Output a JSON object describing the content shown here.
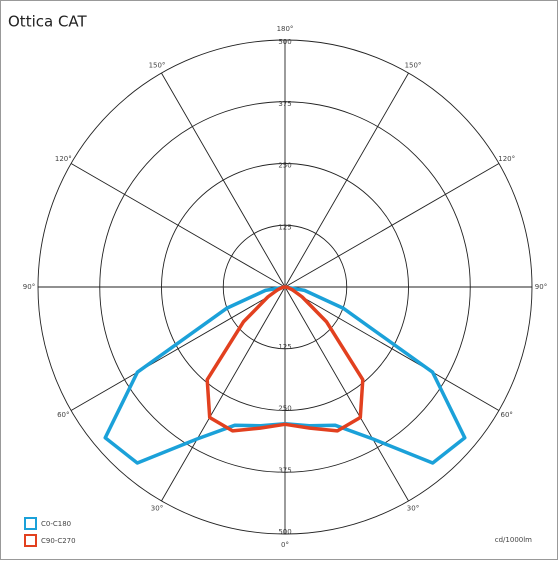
{
  "chart_data": {
    "type": "polar",
    "title": "Ottica CAT",
    "unit_label": "cd/1000lm",
    "x": [
      -90,
      -80,
      -70,
      -60,
      -50,
      -40,
      -30,
      -20,
      -10,
      0,
      10,
      20,
      30,
      40,
      50,
      60,
      70,
      80,
      90
    ],
    "series": [
      {
        "name": "C0-C180",
        "color": "#1ba1d9",
        "values": [
          0,
          40,
          125,
          345,
          475,
          465,
          355,
          298,
          285,
          277,
          285,
          298,
          355,
          465,
          475,
          345,
          125,
          40,
          0
        ]
      },
      {
        "name": "C90-C270",
        "color": "#e2401f",
        "values": [
          0,
          5,
          15,
          40,
          110,
          245,
          305,
          310,
          290,
          278,
          290,
          310,
          305,
          245,
          110,
          40,
          15,
          5,
          0
        ]
      }
    ],
    "rlim": [
      0,
      500
    ],
    "rticks": [
      125,
      250,
      375,
      500
    ],
    "angle_ticks": [
      {
        "value": 0,
        "label": "0°"
      },
      {
        "value": 30,
        "label": "30°"
      },
      {
        "value": 60,
        "label": "60°"
      },
      {
        "value": 90,
        "label": "90°"
      },
      {
        "value": 120,
        "label": "120°"
      },
      {
        "value": 150,
        "label": "150°"
      },
      {
        "value": 180,
        "label": "180°"
      },
      {
        "value": -30,
        "label": "30°"
      },
      {
        "value": -60,
        "label": "60°"
      },
      {
        "value": -90,
        "label": "90°"
      },
      {
        "value": -120,
        "label": "120°"
      },
      {
        "value": -150,
        "label": "150°"
      }
    ],
    "legend": "lower left"
  }
}
